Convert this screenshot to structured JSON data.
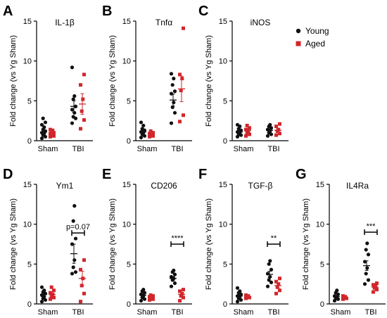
{
  "colors": {
    "young": "#111111",
    "aged": "#d0272c",
    "axis": "#000000"
  },
  "legend": [
    {
      "label": "Young",
      "series": "young"
    },
    {
      "label": "Aged",
      "series": "aged"
    }
  ],
  "chart_data": [
    {
      "panel": "A",
      "type": "scatter",
      "title": "IL-1β",
      "ylabel": "Fold change (vs Yg Sham)",
      "ylim": [
        0,
        15
      ],
      "yticks": [
        0,
        5,
        10,
        15
      ],
      "categories": [
        "Sham",
        "TBI"
      ],
      "groups": [
        {
          "category": "Sham",
          "series": "young",
          "points": [
            0.3,
            0.5,
            0.7,
            0.9,
            1.0,
            1.2,
            1.4,
            1.7,
            2.0,
            2.3,
            2.8
          ],
          "mean": 1.1,
          "sem": 0.25
        },
        {
          "category": "Sham",
          "series": "aged",
          "points": [
            0.5,
            0.6,
            0.7,
            0.8,
            0.9,
            1.0,
            1.1,
            1.3,
            1.4
          ],
          "mean": 0.9,
          "sem": 0.12
        },
        {
          "category": "TBI",
          "series": "young",
          "points": [
            2.2,
            2.8,
            3.0,
            3.5,
            3.9,
            4.3,
            5.2,
            5.6,
            9.2
          ],
          "mean": 4.3,
          "sem": 0.7
        },
        {
          "category": "TBI",
          "series": "aged",
          "points": [
            1.5,
            2.6,
            3.7,
            5.2,
            7.0,
            8.3
          ],
          "mean": 4.6,
          "sem": 1.3
        }
      ]
    },
    {
      "panel": "B",
      "type": "scatter",
      "title": "Tnfα",
      "ylabel": "Fold change (vs Yg Sham)",
      "ylim": [
        0,
        15
      ],
      "yticks": [
        0,
        5,
        10,
        15
      ],
      "categories": [
        "Sham",
        "TBI"
      ],
      "groups": [
        {
          "category": "Sham",
          "series": "young",
          "points": [
            0.4,
            0.6,
            0.8,
            1.0,
            1.1,
            1.3,
            1.5,
            1.9,
            2.3
          ],
          "mean": 1.1,
          "sem": 0.2
        },
        {
          "category": "Sham",
          "series": "aged",
          "points": [
            0.5,
            0.6,
            0.7,
            0.8,
            0.9,
            1.0,
            1.2
          ],
          "mean": 0.8,
          "sem": 0.1
        },
        {
          "category": "TBI",
          "series": "young",
          "points": [
            2.2,
            3.5,
            4.2,
            4.8,
            5.9,
            6.2,
            7.0,
            7.8,
            8.4
          ],
          "mean": 5.1,
          "sem": 0.75
        },
        {
          "category": "TBI",
          "series": "aged",
          "points": [
            2.4,
            3.2,
            6.3,
            7.8,
            8.3,
            14.1
          ],
          "mean": 6.5,
          "sem": 1.6
        }
      ]
    },
    {
      "panel": "C",
      "type": "scatter",
      "title": "iNOS",
      "ylabel": "Fold change (vs Yg Sham)",
      "ylim": [
        0,
        15
      ],
      "yticks": [
        0,
        5,
        10,
        15
      ],
      "categories": [
        "Sham",
        "TBI"
      ],
      "groups": [
        {
          "category": "Sham",
          "series": "young",
          "points": [
            0.5,
            0.7,
            0.8,
            1.0,
            1.1,
            1.3,
            1.5,
            1.8,
            2.0
          ],
          "mean": 1.1,
          "sem": 0.2
        },
        {
          "category": "Sham",
          "series": "aged",
          "points": [
            0.6,
            0.8,
            1.0,
            1.2,
            1.4,
            1.6,
            1.9
          ],
          "mean": 1.3,
          "sem": 0.2
        },
        {
          "category": "TBI",
          "series": "young",
          "points": [
            0.6,
            0.8,
            1.0,
            1.2,
            1.4,
            1.6,
            1.8,
            2.0
          ],
          "mean": 1.3,
          "sem": 0.2
        },
        {
          "category": "TBI",
          "series": "aged",
          "points": [
            0.7,
            0.9,
            1.2,
            1.4,
            1.8,
            2.1
          ],
          "mean": 1.3,
          "sem": 0.25
        }
      ]
    },
    {
      "panel": "D",
      "type": "scatter",
      "title": "Ym1",
      "ylabel": "Fold change (vs Yg Sham)",
      "ylim": [
        0,
        15
      ],
      "yticks": [
        0,
        5,
        10,
        15
      ],
      "categories": [
        "Sham",
        "TBI"
      ],
      "groups": [
        {
          "category": "Sham",
          "series": "young",
          "points": [
            0.3,
            0.5,
            0.7,
            0.9,
            1.1,
            1.3,
            1.5,
            1.7,
            2.1
          ],
          "mean": 1.2,
          "sem": 0.2
        },
        {
          "category": "Sham",
          "series": "aged",
          "points": [
            0.6,
            0.8,
            1.0,
            1.2,
            1.4,
            1.7,
            2.1
          ],
          "mean": 1.2,
          "sem": 0.2
        },
        {
          "category": "TBI",
          "series": "young",
          "points": [
            3.8,
            4.0,
            4.6,
            5.5,
            7.5,
            8.2,
            10.4,
            12.3
          ],
          "mean": 6.3,
          "sem": 1.2
        },
        {
          "category": "TBI",
          "series": "aged",
          "points": [
            0.3,
            1.3,
            2.3,
            3.2,
            4.3,
            5.5
          ],
          "mean": 3.2,
          "sem": 0.9
        }
      ],
      "annotation": {
        "text": "p=0.07",
        "category": "TBI",
        "y": 8.9
      }
    },
    {
      "panel": "E",
      "type": "scatter",
      "title": "CD206",
      "ylabel": "Fold change (vs Yg Sham)",
      "ylim": [
        0,
        15
      ],
      "yticks": [
        0,
        5,
        10,
        15
      ],
      "categories": [
        "Sham",
        "TBI"
      ],
      "groups": [
        {
          "category": "Sham",
          "series": "young",
          "points": [
            0.4,
            0.6,
            0.8,
            1.0,
            1.2,
            1.4,
            1.6,
            1.8
          ],
          "mean": 1.1,
          "sem": 0.18
        },
        {
          "category": "Sham",
          "series": "aged",
          "points": [
            0.5,
            0.6,
            0.7,
            0.8,
            0.9,
            1.0,
            1.1
          ],
          "mean": 0.8,
          "sem": 0.08
        },
        {
          "category": "TBI",
          "series": "young",
          "points": [
            2.2,
            2.6,
            3.0,
            3.2,
            3.4,
            3.7,
            4.0,
            4.2
          ],
          "mean": 3.2,
          "sem": 0.25
        },
        {
          "category": "TBI",
          "series": "aged",
          "points": [
            0.4,
            0.8,
            1.0,
            1.3,
            1.6,
            1.8
          ],
          "mean": 1.2,
          "sem": 0.2
        }
      ],
      "annotation": {
        "text": "****",
        "category": "TBI",
        "y": 7.5
      }
    },
    {
      "panel": "F",
      "type": "scatter",
      "title": "TGF-β",
      "ylabel": "Fold change (vs Yg Sham)",
      "ylim": [
        0,
        15
      ],
      "yticks": [
        0,
        5,
        10,
        15
      ],
      "categories": [
        "Sham",
        "TBI"
      ],
      "groups": [
        {
          "category": "Sham",
          "series": "young",
          "points": [
            0.3,
            0.5,
            0.7,
            0.9,
            1.0,
            1.2,
            1.4,
            1.6,
            2.0
          ],
          "mean": 1.0,
          "sem": 0.18
        },
        {
          "category": "Sham",
          "series": "aged",
          "points": [
            0.7,
            0.8,
            0.9,
            1.0,
            1.1
          ],
          "mean": 0.9,
          "sem": 0.07
        },
        {
          "category": "TBI",
          "series": "young",
          "points": [
            2.2,
            2.7,
            3.0,
            3.4,
            3.8,
            4.3,
            5.0,
            5.4
          ],
          "mean": 3.7,
          "sem": 0.4
        },
        {
          "category": "TBI",
          "series": "aged",
          "points": [
            1.3,
            1.7,
            2.1,
            2.5,
            2.8,
            3.2
          ],
          "mean": 2.3,
          "sem": 0.3
        }
      ],
      "annotation": {
        "text": "**",
        "category": "TBI",
        "y": 7.5
      }
    },
    {
      "panel": "G",
      "type": "scatter",
      "title": "IL4Ra",
      "ylabel": "Fold change (vs Yg Sham)",
      "ylim": [
        0,
        15
      ],
      "yticks": [
        0,
        5,
        10,
        15
      ],
      "categories": [
        "Sham",
        "TBI"
      ],
      "groups": [
        {
          "category": "Sham",
          "series": "young",
          "points": [
            0.4,
            0.6,
            0.7,
            0.9,
            1.0,
            1.2,
            1.4,
            1.7
          ],
          "mean": 0.9,
          "sem": 0.15
        },
        {
          "category": "Sham",
          "series": "aged",
          "points": [
            0.6,
            0.7,
            0.8,
            0.9,
            1.0
          ],
          "mean": 0.8,
          "sem": 0.07
        },
        {
          "category": "TBI",
          "series": "young",
          "points": [
            2.5,
            3.0,
            3.8,
            4.5,
            5.3,
            6.2,
            6.8,
            7.6
          ],
          "mean": 4.8,
          "sem": 0.6
        },
        {
          "category": "TBI",
          "series": "aged",
          "points": [
            1.5,
            1.8,
            2.0,
            2.2,
            2.4,
            2.6
          ],
          "mean": 2.1,
          "sem": 0.15
        }
      ],
      "annotation": {
        "text": "***",
        "category": "TBI",
        "y": 9.0
      }
    }
  ]
}
